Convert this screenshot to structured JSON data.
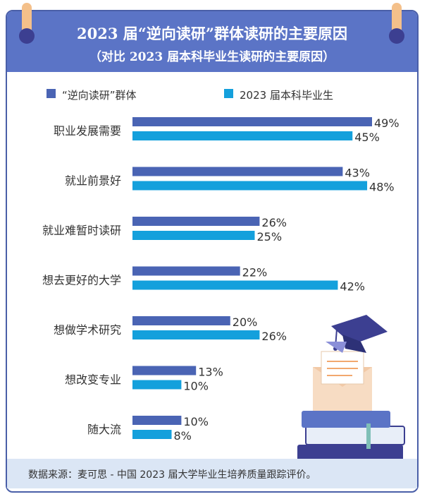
{
  "header": {
    "title": "2023 届“逆向读研”群体读研的主要原因",
    "subtitle": "（对比 2023 届本科毕业生读研的主要原因）"
  },
  "legend": [
    {
      "label": "“逆向读研”群体",
      "color": "#4a64b4"
    },
    {
      "label": "2023 届本科毕业生",
      "color": "#14a0dc"
    }
  ],
  "footer": {
    "text": "数据来源：麦可思 - 中国 2023 届大学毕业生培养质量跟踪评价。"
  },
  "chart_data": {
    "type": "bar",
    "orientation": "horizontal",
    "title": "2023 届“逆向读研”群体读研的主要原因",
    "subtitle": "（对比 2023 届本科毕业生读研的主要原因）",
    "categories": [
      "职业发展需要",
      "就业前景好",
      "就业难暂时读研",
      "想去更好的大学",
      "想做学术研究",
      "想改变专业",
      "随大流"
    ],
    "series": [
      {
        "name": "“逆向读研”群体",
        "values": [
          49,
          43,
          26,
          22,
          20,
          13,
          10
        ],
        "labels": [
          "49%",
          "43%",
          "26%",
          "22%",
          "20%",
          "13%",
          "10%"
        ],
        "color": "#4a64b4"
      },
      {
        "name": "2023 届本科毕业生",
        "values": [
          45,
          48,
          25,
          42,
          26,
          10,
          8
        ],
        "labels": [
          "45%",
          "48%",
          "25%",
          "42%",
          "26%",
          "10%",
          "8%"
        ],
        "color": "#14a0dc"
      }
    ],
    "unit": "%",
    "xlim": [
      0,
      60
    ],
    "grid": false,
    "legend_position": "top"
  }
}
